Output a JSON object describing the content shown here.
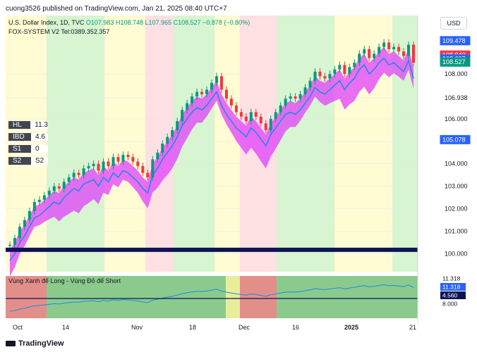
{
  "header": {
    "text": "cuong3526 published on TradingView.com, Jan 21, 2025 08:40 UTC+7"
  },
  "legend": {
    "symbol": "U.S. Dollar Index, 1D, TVC",
    "o": "O107.983",
    "h": "H108.748",
    "l": "L107.965",
    "c": "C108.527",
    "change": "−0.878 (−0.80%)",
    "indicator": "FOX-SYSTEM V2 Tel:0389.352.357"
  },
  "currency": "USD",
  "hl_table": [
    {
      "k": "HL",
      "v": "11.3"
    },
    {
      "k": "IBD",
      "v": "4.6"
    },
    {
      "k": "S1",
      "v": "0"
    },
    {
      "k": "S2",
      "v": "S2"
    }
  ],
  "oscillator": {
    "title": "Vùng Xanh để Long - Vùng Đỏ để Short",
    "labels": [
      "11.318",
      "11.318",
      "4.560",
      "8.000"
    ]
  },
  "price_tags": [
    {
      "value": 109.478,
      "text": "109.478",
      "color": "#2962ff"
    },
    {
      "value": 108.84,
      "text": "108.840",
      "color": "#f23645"
    },
    {
      "value": 108.668,
      "text": "108.668",
      "color": "#ffffff"
    },
    {
      "value": 108.667,
      "text": "108.667",
      "color": "#2962ff"
    },
    {
      "value": 108.527,
      "text": "108.527",
      "color": "#089981"
    },
    {
      "value": 105.078,
      "text": "105.078",
      "color": "#2962ff"
    }
  ],
  "chart_data": {
    "type": "line",
    "title": "U.S. Dollar Index, 1D, TVC",
    "ylim": [
      99.2,
      110.6
    ],
    "yticks": [
      100.0,
      101.0,
      102.0,
      103.0,
      104.0,
      105.0,
      106.0,
      106.938,
      108.0
    ],
    "ytick_labels": [
      "100.000",
      "101.000",
      "102.000",
      "103.000",
      "104.000",
      "105.000",
      "106.000",
      "106.938",
      "108.000"
    ],
    "xtick_labels": [
      "Oct",
      "14",
      "Nov",
      "18",
      "Dec",
      "16",
      "2025",
      "21"
    ],
    "series": [
      {
        "values": [
          100.4,
          100.7,
          101.2,
          101.5,
          101.9,
          102.3,
          102.4,
          102.6,
          102.8,
          103.0,
          102.9,
          103.2,
          103.4,
          103.6,
          103.5,
          103.8,
          103.9,
          104.0,
          103.7,
          104.1,
          103.9,
          104.3,
          104.1,
          104.4,
          104.3,
          104.1,
          103.9,
          103.6,
          103.4,
          104.2,
          104.5,
          104.9,
          105.2,
          105.5,
          105.9,
          106.4,
          106.7,
          107.0,
          107.2,
          107.1,
          107.3,
          107.6,
          107.9,
          107.3,
          106.9,
          106.6,
          106.3,
          106.1,
          105.9,
          106.3,
          106.1,
          105.8,
          105.5,
          106.0,
          106.3,
          106.6,
          106.9,
          107.0,
          106.9,
          107.1,
          107.4,
          107.7,
          108.1,
          107.9,
          107.8,
          108.0,
          108.2,
          108.4,
          108.0,
          108.3,
          108.5,
          108.9,
          109.1,
          108.7,
          108.9,
          109.2,
          109.4,
          109.1,
          109.2,
          109.0,
          108.8,
          109.3,
          108.5
        ]
      }
    ]
  }
}
